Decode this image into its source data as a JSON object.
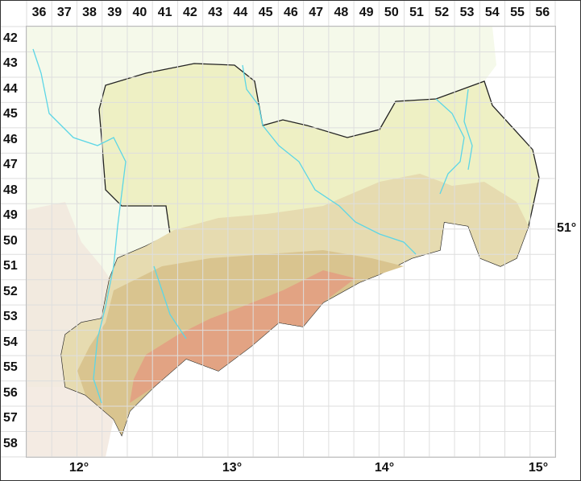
{
  "grid": {
    "columns": [
      "36",
      "37",
      "38",
      "39",
      "40",
      "41",
      "42",
      "43",
      "44",
      "45",
      "46",
      "47",
      "48",
      "49",
      "50",
      "51",
      "52",
      "53",
      "54",
      "55",
      "56"
    ],
    "rows": [
      "42",
      "43",
      "44",
      "45",
      "46",
      "47",
      "48",
      "49",
      "50",
      "51",
      "52",
      "53",
      "54",
      "55",
      "56",
      "57",
      "58"
    ]
  },
  "axes": {
    "longitudes": [
      "12°",
      "13°",
      "14°",
      "15°"
    ],
    "latitude": "51°"
  },
  "colors": {
    "lowland": "#eef0c4",
    "hill": "#e6dbb0",
    "upland": "#d9c48f",
    "mountain": "#e2a383",
    "river": "#5cd6e6",
    "border": "#222222",
    "outside": "#f5f9ea"
  }
}
